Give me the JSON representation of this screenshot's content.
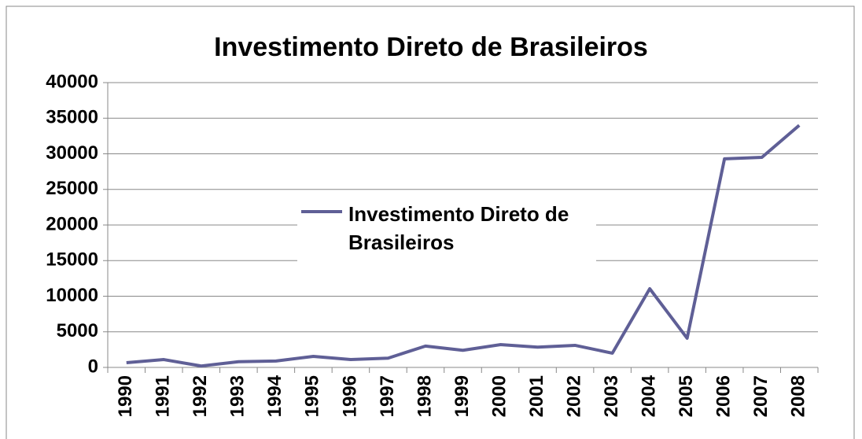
{
  "chart_data": {
    "type": "line",
    "title": "Investimento Direto de Brasileiros",
    "categories": [
      "1990",
      "1991",
      "1992",
      "1993",
      "1994",
      "1995",
      "1996",
      "1997",
      "1998",
      "1999",
      "2000",
      "2001",
      "2002",
      "2003",
      "2004",
      "2005",
      "2006",
      "2007",
      "2008"
    ],
    "series": [
      {
        "name": "Investimento Direto de Brasileiros",
        "color": "#5f5f96",
        "values": [
          660,
          1100,
          200,
          800,
          900,
          1550,
          1100,
          1300,
          3000,
          2400,
          3200,
          2850,
          3100,
          2000,
          11050,
          4100,
          29300,
          29500,
          34000
        ]
      }
    ],
    "ylim": [
      0,
      40000
    ],
    "yticks": [
      0,
      5000,
      10000,
      15000,
      20000,
      25000,
      30000,
      35000,
      40000
    ],
    "grid": true,
    "legend": "center"
  }
}
